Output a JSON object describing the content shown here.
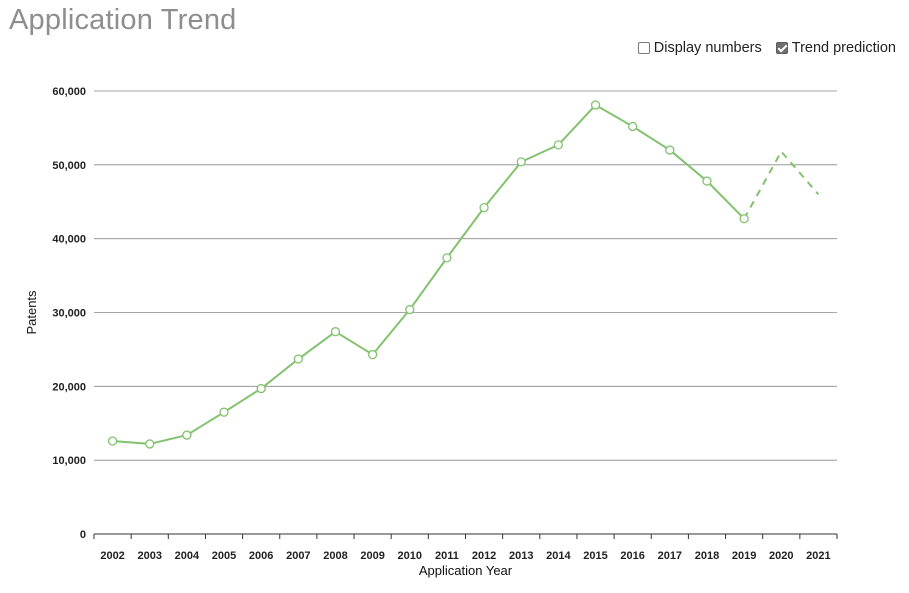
{
  "title": "Application Trend",
  "controls": {
    "display_numbers": {
      "label": "Display numbers",
      "checked": false
    },
    "trend_prediction": {
      "label": "Trend prediction",
      "checked": true
    }
  },
  "colors": {
    "series": "#82c26e",
    "grid": "#888888",
    "marker_fill": "#ffffff",
    "title": "#8e8e8e"
  },
  "chart_data": {
    "type": "line",
    "xlabel": "Application Year",
    "ylabel": "Patents",
    "ylim": [
      0,
      60000
    ],
    "yticks": [
      0,
      10000,
      20000,
      30000,
      40000,
      50000,
      60000
    ],
    "ytick_labels": [
      "0",
      "10,000",
      "20,000",
      "30,000",
      "40,000",
      "50,000",
      "60,000"
    ],
    "categories": [
      "2002",
      "2003",
      "2004",
      "2005",
      "2006",
      "2007",
      "2008",
      "2009",
      "2010",
      "2011",
      "2012",
      "2013",
      "2014",
      "2015",
      "2016",
      "2017",
      "2018",
      "2019",
      "2020",
      "2021"
    ],
    "grid": true,
    "series": [
      {
        "style": "solid",
        "markers": true,
        "values": [
          12600,
          12200,
          13400,
          16500,
          19700,
          23700,
          27400,
          24300,
          30400,
          37400,
          44200,
          50400,
          52700,
          58100,
          55200,
          52000,
          47800,
          42700,
          null,
          null
        ]
      },
      {
        "style": "dashed",
        "markers": false,
        "values": [
          null,
          null,
          null,
          null,
          null,
          null,
          null,
          null,
          null,
          null,
          null,
          null,
          null,
          null,
          null,
          null,
          null,
          42700,
          51800,
          46000
        ]
      }
    ]
  }
}
